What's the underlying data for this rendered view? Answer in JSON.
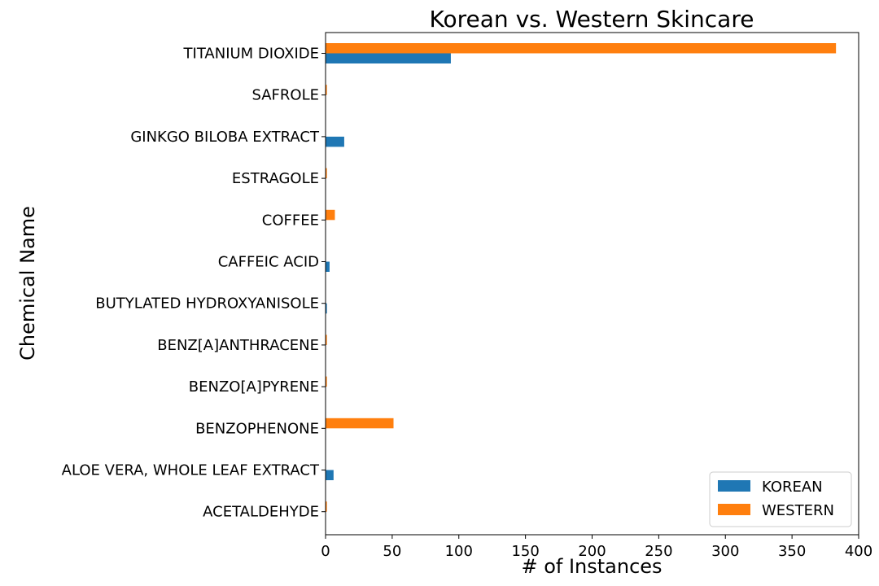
{
  "chart_data": {
    "type": "bar",
    "orientation": "horizontal",
    "title": "Korean vs. Western Skincare",
    "xlabel": "# of Instances",
    "ylabel": "Chemical Name",
    "xlim": [
      0,
      400
    ],
    "xticks": [
      0,
      50,
      100,
      150,
      200,
      250,
      300,
      350,
      400
    ],
    "grid": false,
    "legend_position": "bottom-right",
    "categories": [
      "TITANIUM DIOXIDE",
      "SAFROLE",
      "GINKGO BILOBA EXTRACT",
      "ESTRAGOLE",
      "COFFEE",
      "CAFFEIC ACID",
      "BUTYLATED HYDROXYANISOLE",
      "BENZ[A]ANTHRACENE",
      "BENZO[A]PYRENE",
      "BENZOPHENONE",
      "ALOE VERA, WHOLE LEAF EXTRACT",
      "ACETALDEHYDE"
    ],
    "series": [
      {
        "name": "KOREAN",
        "color": "#1f77b4",
        "values": [
          94,
          0,
          14,
          0,
          0,
          3,
          1,
          0,
          0,
          0,
          6,
          0
        ]
      },
      {
        "name": "WESTERN",
        "color": "#ff7f0e",
        "values": [
          383,
          1,
          0,
          1,
          7,
          0,
          0,
          1,
          1,
          51,
          0,
          1
        ]
      }
    ]
  }
}
